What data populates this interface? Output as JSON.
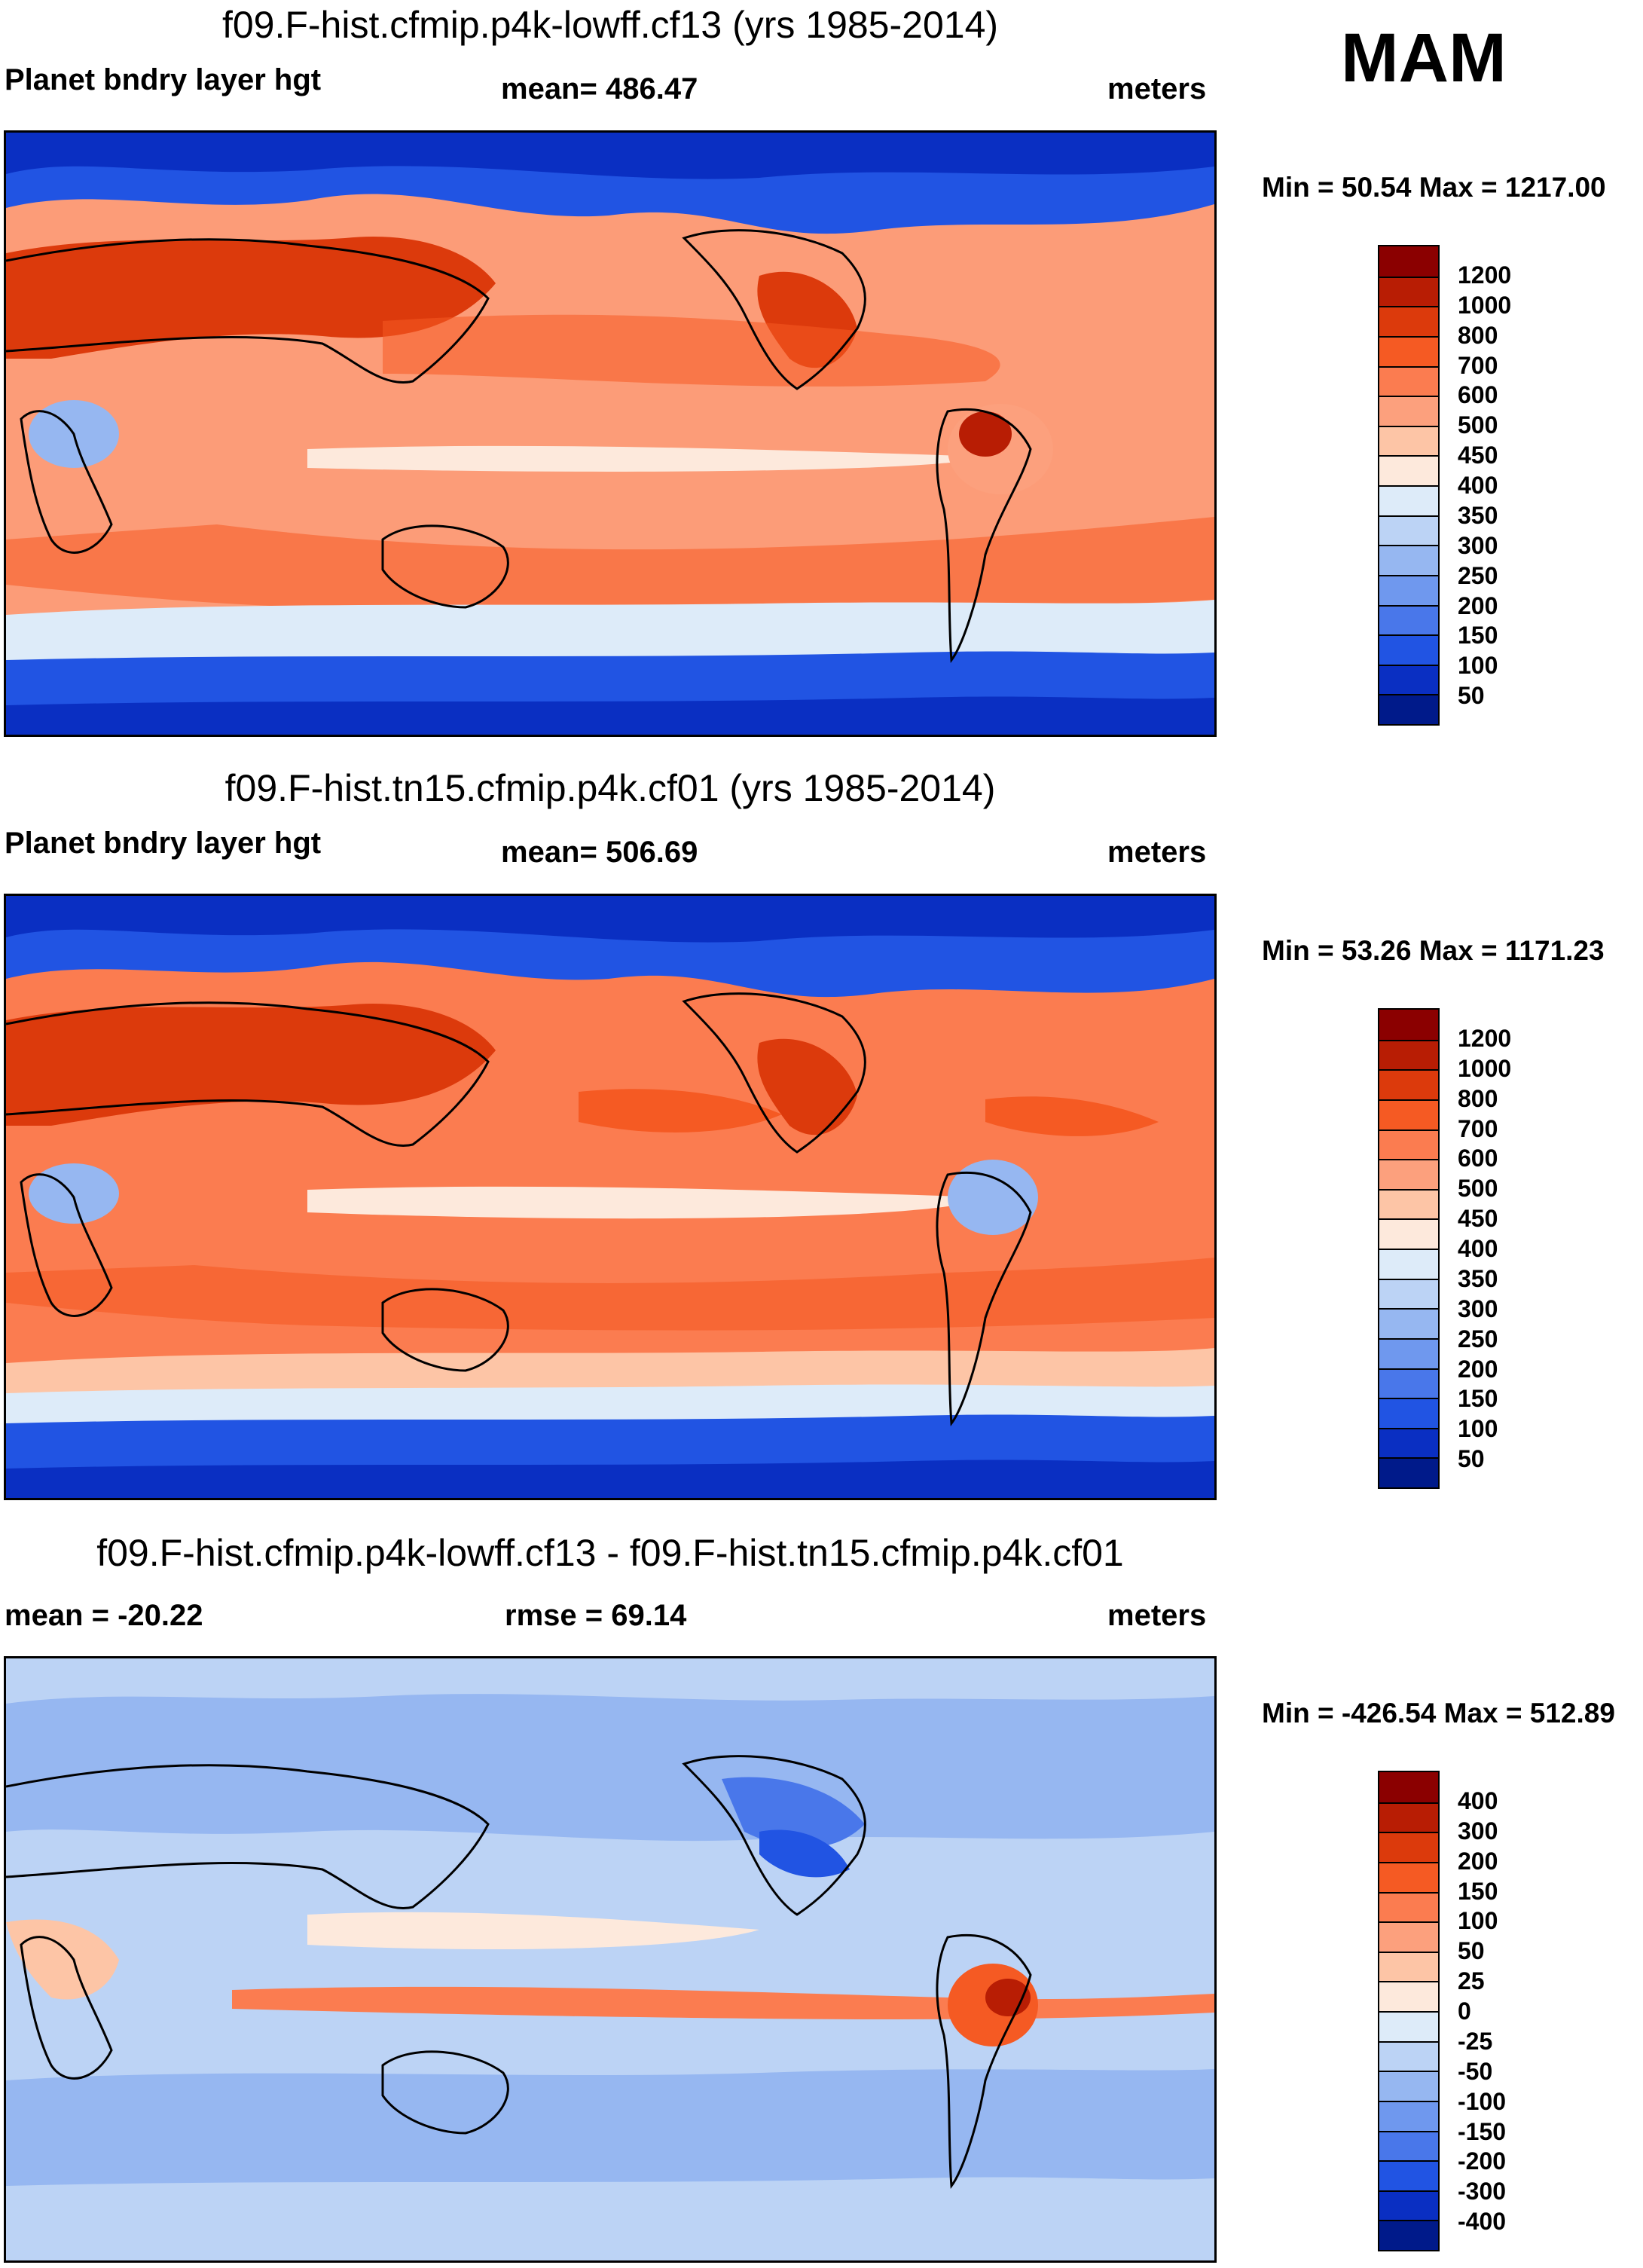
{
  "season": "MAM",
  "panels": [
    {
      "title": "f09.F-hist.cfmip.p4k-lowff.cf13 (yrs 1985-2014)",
      "left_label": "Planet bndry layer hgt",
      "center_label": "mean= 486.47",
      "units": "meters",
      "minmax": "Min =  50.54 Max = 1217.00",
      "colorbar": {
        "labels": [
          "1200",
          "1000",
          "800",
          "700",
          "600",
          "500",
          "450",
          "400",
          "350",
          "300",
          "250",
          "200",
          "150",
          "100",
          "50"
        ],
        "colors": [
          "#8b0000",
          "#b81d04",
          "#dc3a0c",
          "#f55a23",
          "#fb7c50",
          "#fca07d",
          "#fdc5a6",
          "#fde9dc",
          "#ddebf9",
          "#bcd3f5",
          "#96b7f1",
          "#6f98ee",
          "#4977ea",
          "#2154e3",
          "#0a2fc2",
          "#001a8a"
        ]
      }
    },
    {
      "title": "f09.F-hist.tn15.cfmip.p4k.cf01 (yrs 1985-2014)",
      "left_label": "Planet bndry layer hgt",
      "center_label": "mean= 506.69",
      "units": "meters",
      "minmax": "Min =  53.26 Max = 1171.23",
      "colorbar": {
        "labels": [
          "1200",
          "1000",
          "800",
          "700",
          "600",
          "500",
          "450",
          "400",
          "350",
          "300",
          "250",
          "200",
          "150",
          "100",
          "50"
        ],
        "colors": [
          "#8b0000",
          "#b81d04",
          "#dc3a0c",
          "#f55a23",
          "#fb7c50",
          "#fca07d",
          "#fdc5a6",
          "#fde9dc",
          "#ddebf9",
          "#bcd3f5",
          "#96b7f1",
          "#6f98ee",
          "#4977ea",
          "#2154e3",
          "#0a2fc2",
          "#001a8a"
        ]
      }
    },
    {
      "title": "f09.F-hist.cfmip.p4k-lowff.cf13 - f09.F-hist.tn15.cfmip.p4k.cf01",
      "left_label": "mean = -20.22",
      "center_label": "rmse =  69.14",
      "units": "meters",
      "minmax": "Min = -426.54 Max = 512.89",
      "colorbar": {
        "labels": [
          "400",
          "300",
          "200",
          "150",
          "100",
          "50",
          "25",
          "0",
          "-25",
          "-50",
          "-100",
          "-150",
          "-200",
          "-300",
          "-400"
        ],
        "colors": [
          "#8b0000",
          "#b81d04",
          "#dc3a0c",
          "#f55a23",
          "#fb7c50",
          "#fca07d",
          "#fdc5a6",
          "#fde9dc",
          "#ddebf9",
          "#bcd3f5",
          "#96b7f1",
          "#6f98ee",
          "#4977ea",
          "#2154e3",
          "#0a2fc2",
          "#001a8a"
        ]
      }
    }
  ]
}
